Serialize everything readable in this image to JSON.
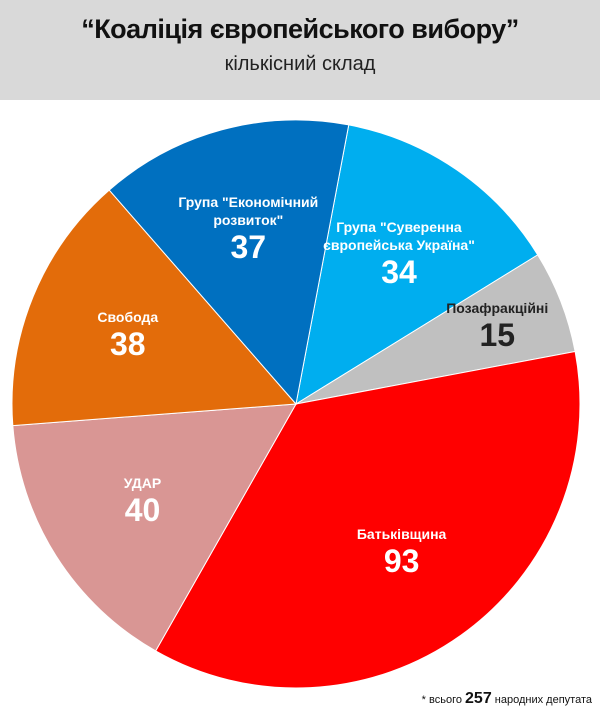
{
  "chart_data": {
    "type": "pie",
    "title": "“Коаліція європейського вибору”",
    "subtitle": "кількісний склад",
    "categories": [
      "Група \"Суверенна європейська Україна\"",
      "Позафракційні",
      "Батьківщина",
      "УДАР",
      "Свобода",
      "Група \"Економічний розвиток\""
    ],
    "values": [
      34,
      15,
      93,
      40,
      38,
      37
    ],
    "colors": [
      "#00aeef",
      "#c0c0c0",
      "#ff0000",
      "#d99694",
      "#e36c0a",
      "#0070c0"
    ],
    "footnote": {
      "prefix": "* всього",
      "total": 257,
      "suffix": "народних депутата"
    }
  }
}
